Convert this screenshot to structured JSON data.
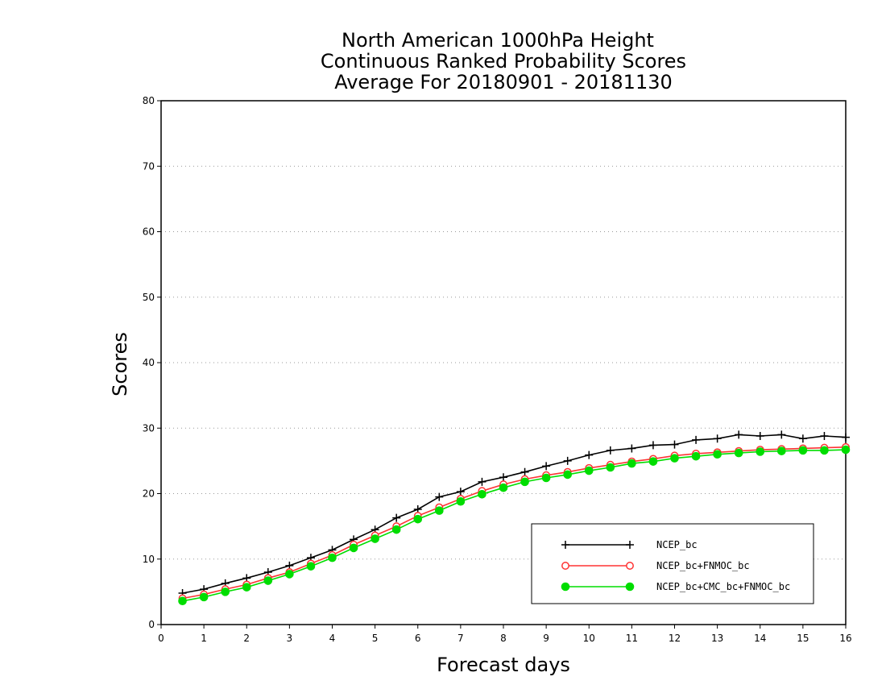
{
  "chart_data": {
    "type": "line",
    "title_lines": [
      "North American 1000hPa Height",
      "Continuous Ranked Probability Scores",
      "Average For 20180901 - 20181130"
    ],
    "xlabel": "Forecast days",
    "ylabel": "Scores",
    "xlim": [
      0,
      16
    ],
    "ylim": [
      0,
      80
    ],
    "x_ticks": [
      0,
      1,
      2,
      3,
      4,
      5,
      6,
      7,
      8,
      9,
      10,
      11,
      12,
      13,
      14,
      15,
      16
    ],
    "y_ticks": [
      0,
      10,
      20,
      30,
      40,
      50,
      60,
      70,
      80
    ],
    "grid": "horizontal dotted",
    "legend_position": "bottom-right",
    "x": [
      0.5,
      1,
      1.5,
      2,
      2.5,
      3,
      3.5,
      4,
      4.5,
      5,
      5.5,
      6,
      6.5,
      7,
      7.5,
      8,
      8.5,
      9,
      9.5,
      10,
      10.5,
      11,
      11.5,
      12,
      12.5,
      13,
      13.5,
      14,
      14.5,
      15,
      15.5,
      16
    ],
    "series": [
      {
        "name": "NCEP_bc",
        "color": "#000000",
        "marker": "plus",
        "values": [
          4.8,
          5.4,
          6.3,
          7.1,
          8.0,
          9.0,
          10.2,
          11.4,
          13.0,
          14.5,
          16.3,
          17.6,
          19.5,
          20.3,
          21.8,
          22.5,
          23.3,
          24.2,
          25.0,
          25.9,
          26.6,
          26.9,
          27.4,
          27.5,
          28.2,
          28.4,
          29.0,
          28.8,
          29.0,
          28.4,
          28.8,
          28.6
        ]
      },
      {
        "name": "NCEP_bc+FNMOC_bc",
        "color": "#ff3333",
        "marker": "open-circle",
        "values": [
          4.0,
          4.6,
          5.4,
          6.1,
          7.1,
          8.0,
          9.3,
          10.6,
          12.2,
          13.6,
          15.0,
          16.6,
          17.9,
          19.2,
          20.4,
          21.4,
          22.2,
          22.8,
          23.3,
          23.9,
          24.4,
          24.9,
          25.3,
          25.8,
          26.1,
          26.3,
          26.5,
          26.7,
          26.8,
          26.9,
          27.0,
          27.1
        ]
      },
      {
        "name": "NCEP_bc+CMC_bc+FNMOC_bc",
        "color": "#00dd00",
        "marker": "filled-circle",
        "values": [
          3.6,
          4.2,
          5.0,
          5.7,
          6.7,
          7.7,
          8.9,
          10.2,
          11.7,
          13.1,
          14.5,
          16.1,
          17.4,
          18.8,
          19.9,
          20.9,
          21.8,
          22.4,
          22.9,
          23.5,
          24.0,
          24.6,
          24.9,
          25.4,
          25.7,
          26.0,
          26.2,
          26.4,
          26.5,
          26.6,
          26.6,
          26.7
        ]
      }
    ]
  }
}
